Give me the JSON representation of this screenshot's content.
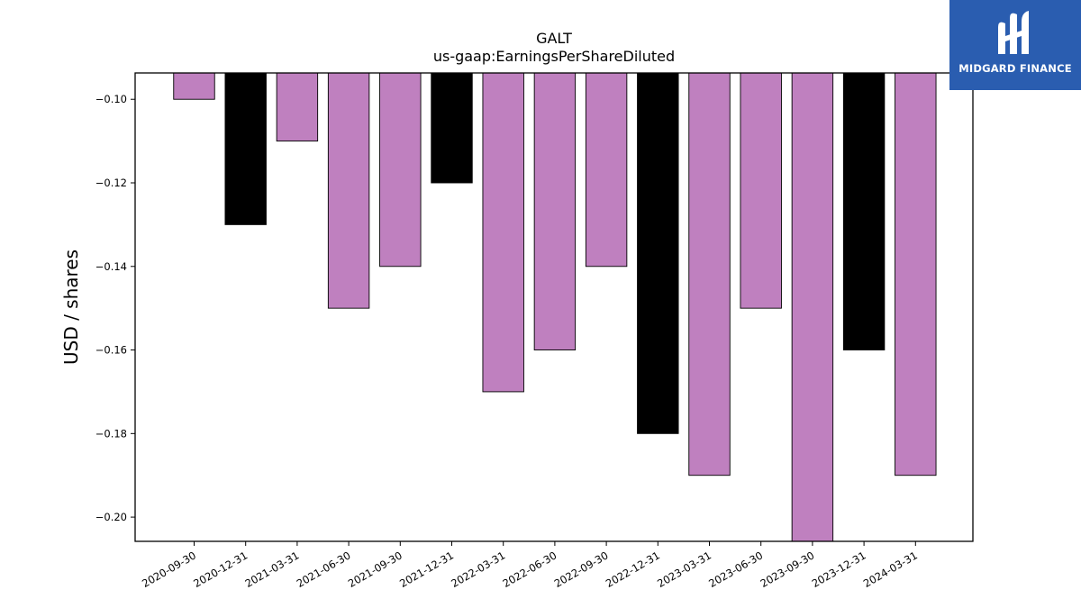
{
  "chart_data": {
    "type": "bar",
    "title": "GALT",
    "subtitle": "us-gaap:EarningsPerShareDiluted",
    "ylabel": "USD / shares",
    "xlabel": "",
    "categories": [
      "2020-09-30",
      "2020-12-31",
      "2021-03-31",
      "2021-06-30",
      "2021-09-30",
      "2021-12-31",
      "2022-03-31",
      "2022-06-30",
      "2022-09-30",
      "2022-12-31",
      "2023-03-31",
      "2023-06-30",
      "2023-09-30",
      "2023-12-31",
      "2024-03-31"
    ],
    "values": [
      -0.1,
      -0.13,
      -0.11,
      -0.15,
      -0.14,
      -0.12,
      -0.17,
      -0.16,
      -0.14,
      -0.18,
      -0.19,
      -0.15,
      -0.21,
      -0.16,
      -0.19
    ],
    "bar_colors": [
      "#bf80bf",
      "#000000",
      "#bf80bf",
      "#bf80bf",
      "#bf80bf",
      "#000000",
      "#bf80bf",
      "#bf80bf",
      "#bf80bf",
      "#000000",
      "#bf80bf",
      "#bf80bf",
      "#bf80bf",
      "#000000",
      "#bf80bf"
    ],
    "yticks": [
      "-0.10",
      "-0.12",
      "-0.14",
      "-0.16",
      "-0.18",
      "-0.20"
    ],
    "ylim": [
      -0.2058,
      -0.0937
    ],
    "grid": false
  },
  "logo": {
    "text": "MIDGARD FINANCE",
    "background": "#2a5db0"
  }
}
